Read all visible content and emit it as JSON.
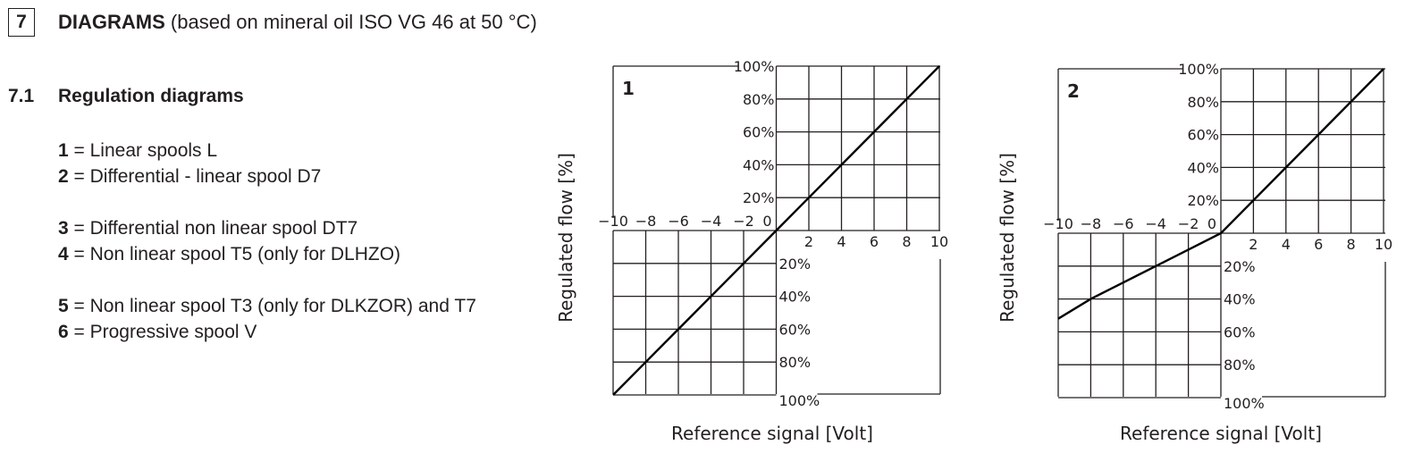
{
  "header": {
    "section_number": "7",
    "section_title_bold": "DIAGRAMS",
    "section_title_rest": " (based on mineral oil ISO VG 46 at 50 °C)",
    "subsection_number": "7.1",
    "subsection_title": "Regulation diagrams"
  },
  "legend": [
    {
      "num": "1",
      "text": " = Linear spools L"
    },
    {
      "num": "2",
      "text": " = Differential - linear spool D7"
    },
    {
      "num": "3",
      "text": " = Differential non linear spool DT7"
    },
    {
      "num": "4",
      "text": " = Non linear spool T5 (only for DLHZO)"
    },
    {
      "num": "5",
      "text": " = Non linear spool T3 (only for DLKZOR) and T7"
    },
    {
      "num": "6",
      "text": " = Progressive spool V"
    }
  ],
  "chart_data": [
    {
      "type": "line",
      "title": "1",
      "xlabel": "Reference signal [Volt]",
      "ylabel": "Regulated flow [%]",
      "x_ticks": [
        "-10",
        "-8",
        "-6",
        "-4",
        "-2",
        "0",
        "2",
        "4",
        "6",
        "8",
        "10"
      ],
      "y_ticks_pos": [
        "20%",
        "40%",
        "60%",
        "80%",
        "100%"
      ],
      "y_ticks_neg": [
        "20%",
        "40%",
        "60%",
        "80%",
        "100%"
      ],
      "xlim": [
        -10,
        10
      ],
      "ylim": [
        -100,
        100
      ],
      "grid": true,
      "series": [
        {
          "name": "Linear spools L",
          "x": [
            -10,
            -8,
            -6,
            -4,
            -2,
            0,
            2,
            4,
            6,
            8,
            10
          ],
          "y": [
            -100,
            -80,
            -60,
            -40,
            -20,
            0,
            20,
            40,
            60,
            80,
            100
          ]
        }
      ]
    },
    {
      "type": "line",
      "title": "2",
      "xlabel": "Reference signal [Volt]",
      "ylabel": "Regulated flow [%]",
      "x_ticks": [
        "-10",
        "-8",
        "-6",
        "-4",
        "-2",
        "0",
        "2",
        "4",
        "6",
        "8",
        "10"
      ],
      "y_ticks_pos": [
        "20%",
        "40%",
        "60%",
        "80%",
        "100%"
      ],
      "y_ticks_neg": [
        "20%",
        "40%",
        "60%",
        "80%",
        "100%"
      ],
      "xlim": [
        -10,
        10
      ],
      "ylim": [
        -100,
        100
      ],
      "grid": true,
      "series": [
        {
          "name": "Differential - linear spool D7",
          "x": [
            -10,
            -8,
            -6,
            -4,
            -2,
            0,
            2,
            4,
            6,
            8,
            10
          ],
          "y": [
            -52,
            -40,
            -30,
            -20,
            -10,
            0,
            20,
            40,
            60,
            80,
            100
          ]
        }
      ]
    }
  ]
}
